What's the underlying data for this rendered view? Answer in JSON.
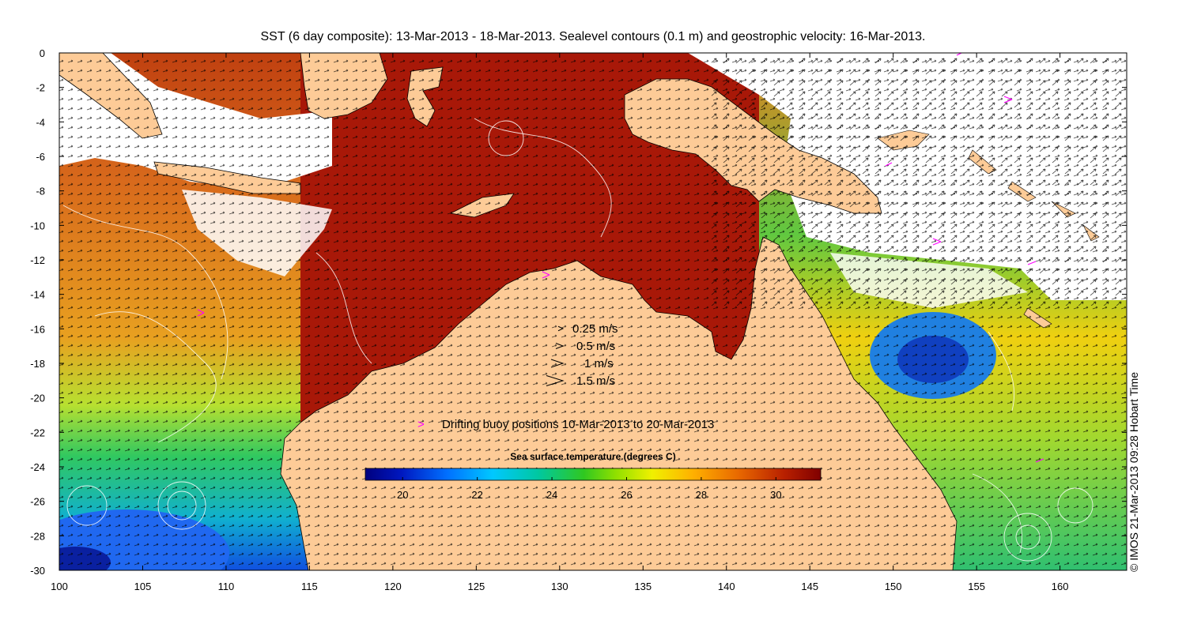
{
  "title": "SST (6 day composite): 13-Mar-2013 - 18-Mar-2013. Sealevel contours (0.1 m) and geostrophic velocity: 16-Mar-2013.",
  "credit": "© IMOS 21-Mar-2013 09:28 Hobart Time",
  "axes": {
    "x_ticks": [
      "100",
      "105",
      "110",
      "115",
      "120",
      "125",
      "130",
      "135",
      "140",
      "145",
      "150",
      "155",
      "160"
    ],
    "y_ticks": [
      "0",
      "-2",
      "-4",
      "-6",
      "-8",
      "-10",
      "-12",
      "-14",
      "-16",
      "-18",
      "-20",
      "-22",
      "-24",
      "-26",
      "-28",
      "-30"
    ],
    "lon_range": [
      100,
      164
    ],
    "lat_range": [
      -30,
      0
    ]
  },
  "velocity_legend": [
    {
      "label": "0.25 m/s",
      "speed": 0.25
    },
    {
      "label": "0.5 m/s",
      "speed": 0.5
    },
    {
      "label": "1 m/s",
      "speed": 1
    },
    {
      "label": "1.5 m/s",
      "speed": 1.5
    }
  ],
  "buoy_legend": {
    "symbol": ">",
    "label": "Drifting buoy positions 10-Mar-2013 to 20-Mar-2013",
    "color": "#ff00ff"
  },
  "colorbar": {
    "title": "Sea surface temperature (degrees C)",
    "range": [
      19,
      31.2
    ],
    "ticks": [
      "20",
      "22",
      "24",
      "26",
      "28",
      "30"
    ],
    "colors": [
      "#00007f",
      "#0050ff",
      "#00c8ff",
      "#00c080",
      "#30d000",
      "#f0f000",
      "#ffb000",
      "#e06000",
      "#a01000",
      "#800000"
    ]
  },
  "colors": {
    "land": "#fdcb97",
    "cloud": "#ffffff"
  }
}
